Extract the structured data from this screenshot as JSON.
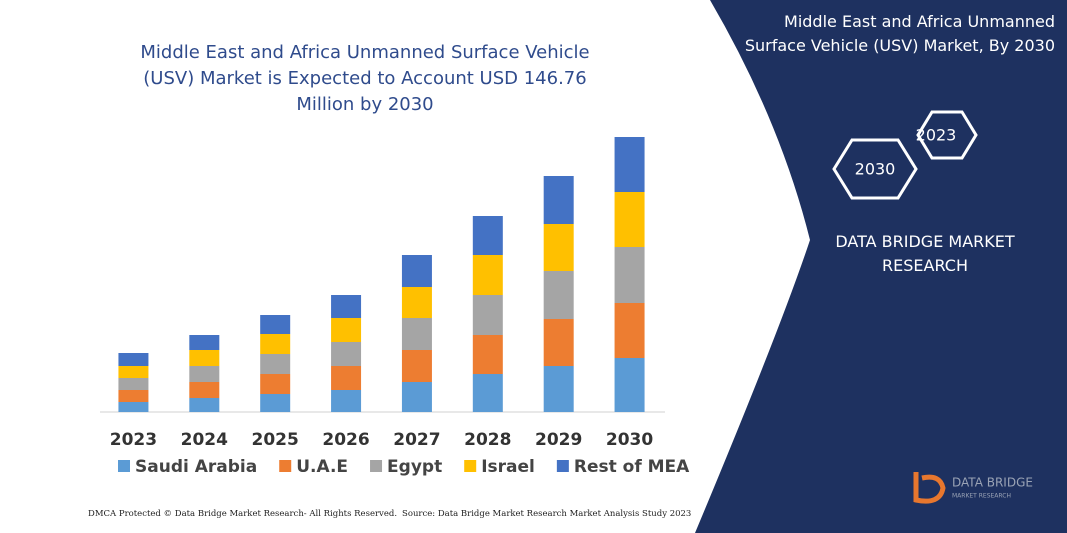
{
  "chart_data": {
    "type": "stacked-bar",
    "title": "Middle East and Africa Unmanned Surface Vehicle (USV) Market is Expected to Account USD 146.76 Million by 2030",
    "categories": [
      "2023",
      "2024",
      "2025",
      "2026",
      "2027",
      "2028",
      "2029",
      "2030"
    ],
    "series": [
      {
        "name": "Saudi Arabia",
        "color": "#5b9bd5",
        "values": [
          10,
          14,
          18,
          22,
          30,
          38,
          46,
          54
        ]
      },
      {
        "name": "U.A.E",
        "color": "#ed7d31",
        "values": [
          12,
          16,
          20,
          24,
          32,
          39,
          47,
          55
        ]
      },
      {
        "name": "Egypt",
        "color": "#a5a5a5",
        "values": [
          12,
          16,
          20,
          24,
          32,
          40,
          48,
          56
        ]
      },
      {
        "name": "Israel",
        "color": "#ffc000",
        "values": [
          12,
          16,
          20,
          24,
          31,
          40,
          47,
          55
        ]
      },
      {
        "name": "Rest of MEA",
        "color": "#4472c4",
        "values": [
          13,
          15,
          19,
          23,
          32,
          39,
          48,
          55
        ]
      }
    ]
  },
  "panel": {
    "title": "Middle East and Africa Unmanned Surface Vehicle (USV) Market, By 2030",
    "hex_back": "2023",
    "hex_front": "2030",
    "brand": "DATA BRIDGE MARKET RESEARCH",
    "logo_top": "DATA BRIDGE",
    "logo_bottom": "MARKET RESEARCH"
  },
  "footer": {
    "left": "DMCA Protected © Data Bridge Market Research- All Rights Reserved.",
    "right": "Source: Data Bridge Market Research Market Analysis Study 2023"
  }
}
